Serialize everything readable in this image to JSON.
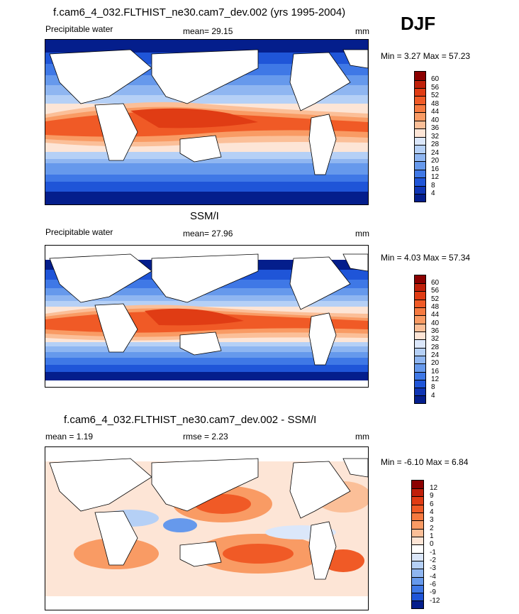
{
  "season": "DJF",
  "panels": [
    {
      "title": "f.cam6_4_032.FLTHIST_ne30.cam7_dev.002 (yrs 1995-2004)",
      "left_label": "Precipitable water",
      "stat_label": "mean=  29.15",
      "unit": "mm",
      "minmax": "Min =   3.27 Max =  57.23",
      "colorbar": {
        "labels": [
          "60",
          "56",
          "52",
          "48",
          "44",
          "40",
          "36",
          "32",
          "28",
          "24",
          "20",
          "16",
          "12",
          "8",
          "4"
        ],
        "colors": [
          "#8b0000",
          "#c0200a",
          "#e03c14",
          "#f05a26",
          "#f67a40",
          "#f99b64",
          "#fbbf98",
          "#fde5d6",
          "#dbe7fa",
          "#b5d0f6",
          "#8fb6f1",
          "#6699ec",
          "#3f78e6",
          "#1f55d8",
          "#0f35b4",
          "#041e8c"
        ]
      }
    },
    {
      "title": "SSM/I",
      "left_label": "Precipitable water",
      "stat_label": "mean=  27.96",
      "unit": "mm",
      "minmax": "Min =   4.03 Max =  57.34",
      "colorbar": {
        "labels": [
          "60",
          "56",
          "52",
          "48",
          "44",
          "40",
          "36",
          "32",
          "28",
          "24",
          "20",
          "16",
          "12",
          "8",
          "4"
        ],
        "colors": [
          "#8b0000",
          "#c0200a",
          "#e03c14",
          "#f05a26",
          "#f67a40",
          "#f99b64",
          "#fbbf98",
          "#fde5d6",
          "#dbe7fa",
          "#b5d0f6",
          "#8fb6f1",
          "#6699ec",
          "#3f78e6",
          "#1f55d8",
          "#0f35b4",
          "#041e8c"
        ]
      }
    },
    {
      "title": "f.cam6_4_032.FLTHIST_ne30.cam7_dev.002 - SSM/I",
      "left_label": "mean =   1.19",
      "stat_label": "rmse =   2.23",
      "unit": "mm",
      "minmax": "Min =  -6.10 Max =   6.84",
      "colorbar": {
        "labels": [
          "12",
          "9",
          "6",
          "4",
          "3",
          "2",
          "1",
          "0",
          "-1",
          "-2",
          "-3",
          "-4",
          "-6",
          "-9",
          "-12"
        ],
        "colors": [
          "#8b0000",
          "#c0200a",
          "#e03c14",
          "#f05a26",
          "#f67a40",
          "#f99b64",
          "#fbbf98",
          "#fde5d6",
          "#ffffff",
          "#dbe7fa",
          "#b5d0f6",
          "#8fb6f1",
          "#6699ec",
          "#3f78e6",
          "#1f55d8",
          "#041e8c"
        ]
      }
    }
  ]
}
